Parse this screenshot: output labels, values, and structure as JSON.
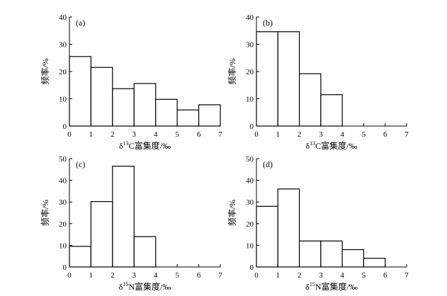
{
  "chart_data": [
    {
      "type": "bar",
      "panel_label": "(a)",
      "bin_edges": [
        0,
        1,
        2,
        3,
        4,
        5,
        6,
        7
      ],
      "values": [
        25.5,
        21.5,
        13.7,
        15.6,
        9.8,
        5.9,
        7.8
      ],
      "xlabel_prefix": "δ",
      "xlabel_sup": "13",
      "xlabel_suffix": "C富集度/‰",
      "ylabel": "频率/%",
      "xlim": [
        0,
        7
      ],
      "ylim": [
        0,
        40
      ],
      "xticks": [
        0,
        1,
        2,
        3,
        4,
        5,
        6,
        7
      ],
      "yticks": [
        0,
        10,
        20,
        30,
        40
      ]
    },
    {
      "type": "bar",
      "panel_label": "(b)",
      "bin_edges": [
        0,
        1,
        2,
        3,
        4,
        5,
        6,
        7
      ],
      "values": [
        34.6,
        34.6,
        19.2,
        11.5,
        0,
        0,
        0
      ],
      "xlabel_prefix": "δ",
      "xlabel_sup": "13",
      "xlabel_suffix": "C富集度/‰",
      "ylabel": "频率/%",
      "xlim": [
        0,
        7
      ],
      "ylim": [
        0,
        40
      ],
      "xticks": [
        0,
        1,
        2,
        3,
        4,
        5,
        6,
        7
      ],
      "yticks": [
        0,
        10,
        20,
        30,
        40
      ]
    },
    {
      "type": "bar",
      "panel_label": "(c)",
      "bin_edges": [
        0,
        1,
        2,
        3,
        4,
        5,
        6,
        7
      ],
      "values": [
        9.5,
        30.2,
        46.5,
        14.0,
        0,
        0,
        0
      ],
      "xlabel_prefix": "δ",
      "xlabel_sup": "15",
      "xlabel_suffix": "N富集度/‰",
      "ylabel": "频率/%",
      "xlim": [
        0,
        7
      ],
      "ylim": [
        0,
        50
      ],
      "xticks": [
        0,
        1,
        2,
        3,
        4,
        5,
        6,
        7
      ],
      "yticks": [
        0,
        10,
        20,
        30,
        40,
        50
      ]
    },
    {
      "type": "bar",
      "panel_label": "(d)",
      "bin_edges": [
        0,
        1,
        2,
        3,
        4,
        5,
        6,
        7
      ],
      "values": [
        28,
        36,
        12,
        12,
        8,
        4,
        0
      ],
      "xlabel_prefix": "δ",
      "xlabel_sup": "15",
      "xlabel_suffix": "N富集度/‰",
      "ylabel": "频率/%",
      "xlim": [
        0,
        7
      ],
      "ylim": [
        0,
        50
      ],
      "xticks": [
        0,
        1,
        2,
        3,
        4,
        5,
        6,
        7
      ],
      "yticks": [
        0,
        10,
        20,
        30,
        40,
        50
      ]
    }
  ]
}
